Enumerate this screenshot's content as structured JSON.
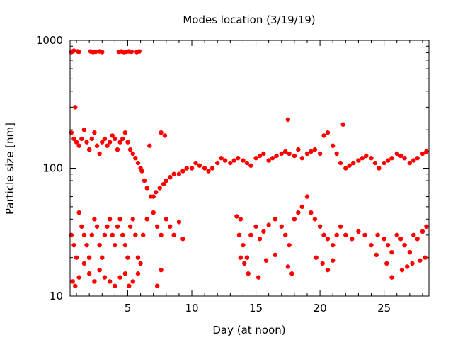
{
  "chart_data": {
    "type": "scatter",
    "title": "Modes location (3/19/19)",
    "xlabel": "Day (at noon)",
    "ylabel": "Particle size [nm]",
    "xlim": [
      0.5,
      28.5
    ],
    "ylim": [
      10,
      1000
    ],
    "yscale": "log",
    "xticks": [
      5,
      10,
      15,
      20,
      25
    ],
    "xtick_labels": [
      "5",
      "10",
      "15",
      "20",
      "25"
    ],
    "yticks": [
      10,
      100,
      1000
    ],
    "ytick_labels": [
      "10",
      "100",
      "1000"
    ],
    "grid": false,
    "legend": "none",
    "marker_color": "#ff0000",
    "series": [
      {
        "x": [
          0.6,
          0.8,
          1.0,
          1.2,
          1.4,
          1.6,
          1.8,
          2.0,
          2.2,
          2.4,
          2.6,
          2.8,
          3.0,
          3.2,
          3.4,
          3.6,
          3.8,
          4.0,
          4.2,
          4.4,
          4.6,
          4.8,
          5.0,
          5.2,
          5.4,
          5.6,
          5.8,
          6.0,
          6.1,
          6.3,
          6.5,
          6.8,
          7.0,
          7.2,
          7.5,
          7.8,
          8.0,
          8.3,
          8.6,
          9.0,
          9.3,
          9.6,
          10.0,
          10.3,
          10.6,
          11.0,
          11.3,
          11.6,
          12.0,
          12.3,
          12.6,
          13.0,
          13.3,
          13.6,
          14.0,
          14.3,
          14.6,
          15.0,
          15.3,
          15.6,
          16.0,
          16.3,
          16.6,
          17.0,
          17.3,
          17.6,
          18.0,
          18.3,
          18.6,
          19.0,
          19.3,
          19.6,
          20.0,
          20.3,
          20.6,
          21.0,
          21.3,
          21.6,
          22.0,
          22.3,
          22.6,
          23.0,
          23.3,
          23.6,
          24.0,
          24.3,
          24.6,
          25.0,
          25.3,
          25.6,
          26.0,
          26.3,
          26.6,
          27.0,
          27.3,
          27.6,
          28.0,
          28.3
        ],
        "y": [
          190,
          170,
          160,
          150,
          170,
          200,
          160,
          140,
          170,
          190,
          150,
          130,
          160,
          170,
          150,
          160,
          180,
          170,
          140,
          160,
          170,
          190,
          160,
          140,
          130,
          120,
          110,
          100,
          95,
          80,
          70,
          60,
          60,
          65,
          70,
          75,
          80,
          85,
          90,
          90,
          95,
          100,
          100,
          110,
          105,
          100,
          95,
          100,
          110,
          120,
          115,
          110,
          115,
          120,
          115,
          110,
          105,
          120,
          125,
          130,
          115,
          120,
          125,
          130,
          135,
          130,
          125,
          140,
          120,
          130,
          135,
          140,
          130,
          180,
          190,
          150,
          130,
          110,
          100,
          105,
          110,
          115,
          120,
          125,
          120,
          110,
          100,
          110,
          115,
          120,
          130,
          125,
          120,
          110,
          115,
          120,
          130,
          135
        ]
      },
      {
        "x": [
          0.6,
          0.8,
          1.0,
          1.2,
          1.4,
          1.6,
          1.8,
          2.0,
          2.2,
          2.4,
          2.6,
          2.8,
          3.0,
          3.2,
          3.4,
          3.6,
          3.8,
          4.0,
          4.2,
          4.4,
          4.6,
          4.8,
          5.0,
          5.2,
          5.4,
          5.6,
          5.8,
          6.0,
          6.2,
          6.5,
          7.0,
          7.3,
          7.6,
          8.0,
          8.3,
          8.6,
          9.0,
          9.3,
          13.7,
          14.0,
          14.3,
          14.6,
          15.0,
          15.3,
          15.6,
          16.0,
          16.5,
          17.0,
          17.3,
          17.6,
          18.0,
          18.3,
          18.6,
          19.0,
          19.3,
          19.6,
          20.0,
          20.3,
          20.6,
          21.0,
          21.3,
          21.6,
          22.0,
          22.5,
          23.0,
          23.5,
          24.0,
          24.5,
          25.0,
          25.3,
          25.6,
          26.0,
          26.3,
          26.6,
          27.0,
          27.3,
          27.6,
          28.0,
          28.3
        ],
        "y": [
          30,
          25,
          20,
          45,
          35,
          30,
          25,
          20,
          30,
          40,
          35,
          25,
          20,
          30,
          35,
          40,
          30,
          25,
          35,
          40,
          30,
          25,
          20,
          35,
          40,
          30,
          20,
          18,
          30,
          40,
          45,
          35,
          30,
          40,
          35,
          30,
          38,
          28,
          30,
          25,
          20,
          30,
          35,
          28,
          32,
          36,
          40,
          35,
          30,
          25,
          40,
          45,
          50,
          60,
          45,
          40,
          35,
          30,
          28,
          25,
          30,
          35,
          30,
          28,
          32,
          30,
          25,
          30,
          28,
          25,
          22,
          30,
          28,
          25,
          22,
          30,
          28,
          32,
          35
        ]
      },
      {
        "x": [
          0.7,
          0.9,
          1.2,
          1.6,
          2.0,
          2.4,
          2.8,
          3.2,
          3.6,
          4.0,
          4.4,
          4.8,
          5.1,
          5.4,
          5.8,
          7.3,
          7.6,
          13.8,
          14.1,
          14.4,
          15.2,
          15.8,
          16.5,
          17.5,
          17.8,
          19.7,
          20.2,
          20.6,
          21.0,
          24.4,
          25.2,
          25.6,
          26.4,
          26.8,
          27.2,
          27.8,
          28.2
        ],
        "y": [
          13,
          12,
          14,
          18,
          15,
          13,
          16,
          14,
          13,
          12,
          14,
          15,
          12,
          13,
          15,
          12,
          16,
          20,
          18,
          15,
          14,
          19,
          21,
          17,
          15,
          20,
          18,
          16,
          19,
          21,
          18,
          14,
          16,
          17,
          18,
          19,
          20
        ]
      },
      {
        "x": [
          0.6,
          0.7,
          0.8,
          1.1,
          1.2,
          2.1,
          2.3,
          2.5,
          2.8,
          3.0,
          4.3,
          4.5,
          4.7,
          4.9,
          5.1,
          5.3,
          5.7,
          5.9
        ],
        "y": [
          810,
          820,
          830,
          820,
          815,
          820,
          810,
          815,
          820,
          810,
          815,
          820,
          810,
          815,
          820,
          815,
          810,
          820
        ]
      },
      {
        "x": [
          0.9,
          7.6,
          7.9,
          13.5,
          13.8,
          17.5,
          21.8,
          6.7
        ],
        "y": [
          300,
          190,
          180,
          42,
          40,
          240,
          220,
          150
        ]
      }
    ]
  }
}
